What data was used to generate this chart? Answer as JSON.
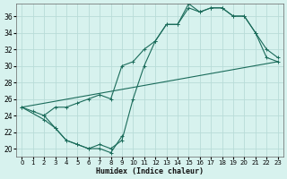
{
  "xlabel": "Humidex (Indice chaleur)",
  "bg_color": "#d7f2ee",
  "grid_color": "#b8dcd8",
  "line_color": "#1a6b5a",
  "xlim": [
    -0.5,
    23.5
  ],
  "ylim": [
    19,
    37.5
  ],
  "xticks": [
    0,
    1,
    2,
    3,
    4,
    5,
    6,
    7,
    8,
    9,
    10,
    11,
    12,
    13,
    14,
    15,
    16,
    17,
    18,
    19,
    20,
    21,
    22,
    23
  ],
  "yticks": [
    20,
    22,
    24,
    26,
    28,
    30,
    32,
    34,
    36
  ],
  "line1_x": [
    0,
    1,
    2,
    3,
    4,
    5,
    6,
    7,
    8,
    9,
    10,
    11,
    12,
    13,
    14,
    15,
    16,
    17,
    18,
    19,
    20,
    21,
    22,
    23
  ],
  "line1_y": [
    25,
    24.5,
    24,
    25,
    25,
    25.5,
    26,
    26.5,
    26,
    30,
    30.5,
    32,
    33,
    35,
    35,
    37,
    36.5,
    37,
    37,
    36,
    36,
    34,
    32,
    31
  ],
  "line2_x": [
    0,
    2,
    3,
    4,
    5,
    6,
    7,
    8,
    9,
    10,
    11,
    12,
    13,
    14,
    15,
    16,
    17,
    18,
    19,
    20,
    21,
    22,
    23
  ],
  "line2_y": [
    25,
    23.5,
    22.5,
    21,
    20.5,
    20,
    20.5,
    20,
    21,
    26,
    30,
    33,
    35,
    35,
    37.5,
    36.5,
    37,
    37,
    36,
    36,
    34,
    31,
    30.5
  ],
  "line3_x": [
    0,
    23
  ],
  "line3_y": [
    25,
    30.5
  ],
  "line4_x": [
    2,
    3,
    4,
    5,
    6,
    7,
    8,
    9
  ],
  "line4_y": [
    24,
    22.5,
    21,
    20.5,
    20,
    20,
    19.5,
    21.5
  ]
}
